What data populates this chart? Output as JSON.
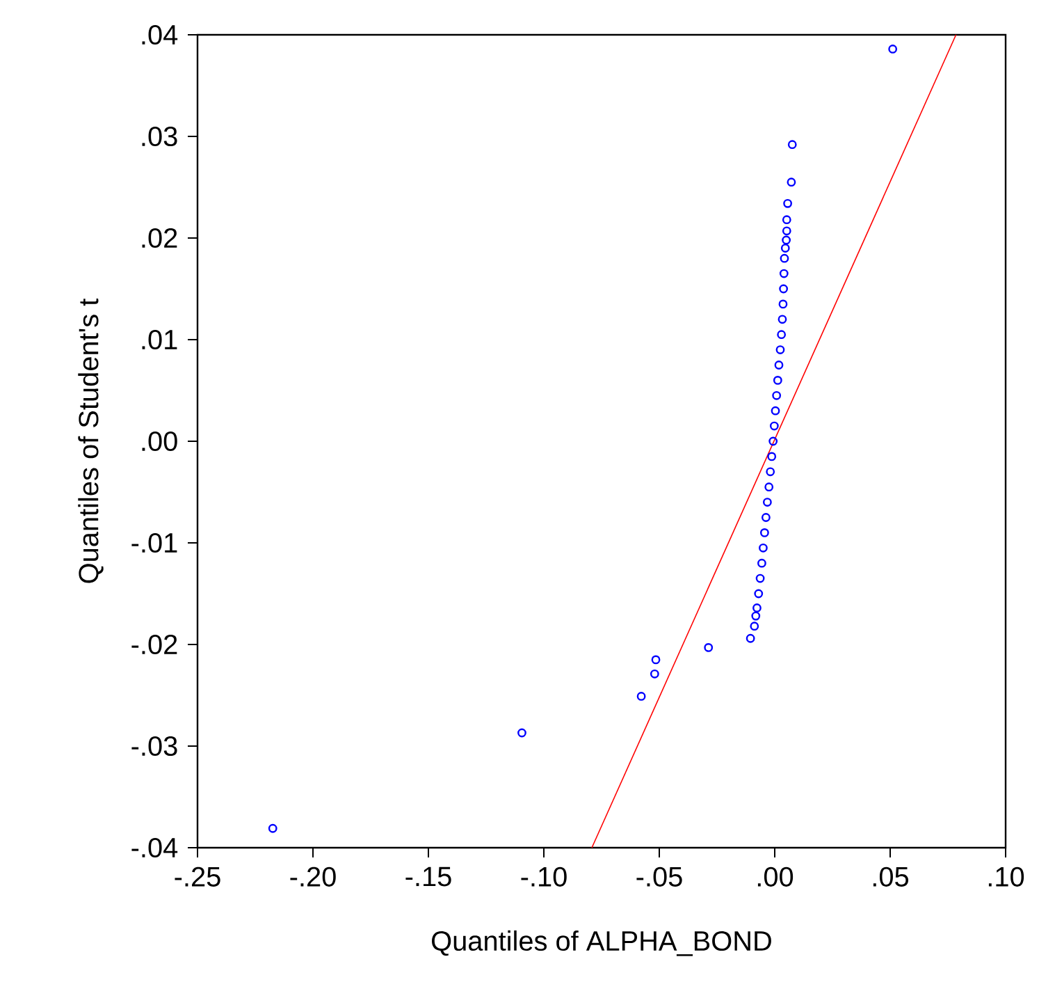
{
  "chart_data": {
    "type": "scatter",
    "xlabel": "Quantiles of ALPHA_BOND",
    "ylabel": "Quantiles of Student's t",
    "xlim": [
      -0.25,
      0.1
    ],
    "ylim": [
      -0.04,
      0.04
    ],
    "xticks": [
      {
        "value": -0.25,
        "label": "-.25"
      },
      {
        "value": -0.2,
        "label": "-.20"
      },
      {
        "value": -0.15,
        "label": "-.15"
      },
      {
        "value": -0.1,
        "label": "-.10"
      },
      {
        "value": -0.05,
        "label": "-.05"
      },
      {
        "value": 0,
        "label": ".00"
      },
      {
        "value": 0.05,
        "label": ".05"
      },
      {
        "value": 0.1,
        "label": ".10"
      }
    ],
    "yticks": [
      {
        "value": -0.04,
        "label": "-.04"
      },
      {
        "value": -0.03,
        "label": "-.03"
      },
      {
        "value": -0.02,
        "label": "-.02"
      },
      {
        "value": -0.01,
        "label": "-.01"
      },
      {
        "value": 0,
        "label": ".00"
      },
      {
        "value": 0.01,
        "label": ".01"
      },
      {
        "value": 0.02,
        "label": ".02"
      },
      {
        "value": 0.03,
        "label": ".03"
      },
      {
        "value": 0.04,
        "label": ".04"
      }
    ],
    "grid": false,
    "series": [
      {
        "marker": "circle",
        "color": "#0000ff",
        "x": [
          -0.2174,
          -0.1095,
          -0.0578,
          -0.052,
          -0.0515,
          -0.0287,
          -0.0105,
          -0.0088,
          -0.0082,
          -0.0077,
          -0.007,
          -0.0063,
          -0.0056,
          -0.005,
          -0.0044,
          -0.0038,
          -0.0032,
          -0.0025,
          -0.0019,
          -0.0013,
          -0.0007,
          -0.0002,
          0.0003,
          0.0008,
          0.0013,
          0.0018,
          0.0024,
          0.0029,
          0.0033,
          0.0036,
          0.0038,
          0.004,
          0.0042,
          0.0046,
          0.005,
          0.0052,
          0.0052,
          0.0056,
          0.0072,
          0.0076,
          0.0511
        ],
        "values": [
          -0.0381,
          -0.0287,
          -0.0251,
          -0.0229,
          -0.0215,
          -0.0203,
          -0.0194,
          -0.0182,
          -0.0172,
          -0.0164,
          -0.015,
          -0.0135,
          -0.012,
          -0.0105,
          -0.009,
          -0.0075,
          -0.006,
          -0.0045,
          -0.003,
          -0.0015,
          0,
          0.0015,
          0.003,
          0.0045,
          0.006,
          0.0075,
          0.009,
          0.0105,
          0.012,
          0.0135,
          0.015,
          0.0165,
          0.018,
          0.019,
          0.0198,
          0.0207,
          0.0218,
          0.0234,
          0.0255,
          0.0292,
          0.0386
        ]
      },
      {
        "type": "line",
        "marker": "none",
        "color": "#ff0000",
        "x": [
          -0.0792,
          0.0785
        ],
        "values": [
          -0.04,
          0.04
        ]
      }
    ]
  }
}
